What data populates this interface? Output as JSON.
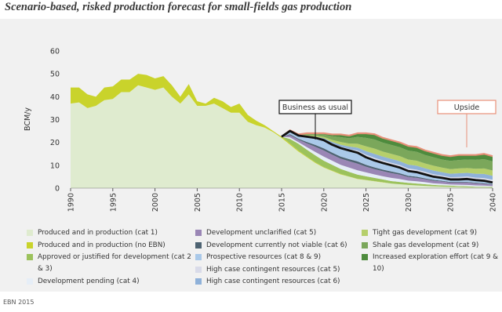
{
  "chart_data": {
    "type": "stacked_area",
    "title": "Scenario-based, risked production forecast for small-fields gas production",
    "y_label": "BCM/y",
    "source": "EBN 2015",
    "annotations": [
      "Business as usual",
      "Upside"
    ],
    "x": [
      1990,
      1991,
      1992,
      1993,
      1994,
      1995,
      1996,
      1997,
      1998,
      1999,
      2000,
      2001,
      2002,
      2003,
      2004,
      2005,
      2006,
      2007,
      2008,
      2009,
      2010,
      2011,
      2012,
      2013,
      2014,
      2015,
      2016,
      2017,
      2018,
      2019,
      2020,
      2021,
      2022,
      2023,
      2024,
      2025,
      2026,
      2027,
      2028,
      2029,
      2030,
      2031,
      2032,
      2033,
      2034,
      2035,
      2036,
      2037,
      2038,
      2039,
      2040
    ],
    "xlim": [
      1990,
      2040
    ],
    "xticks": [
      1990,
      1995,
      2000,
      2005,
      2010,
      2015,
      2020,
      2025,
      2030,
      2035,
      2040
    ],
    "ylim": [
      0,
      60
    ],
    "yticks": [
      0,
      10,
      20,
      30,
      40,
      50,
      60
    ],
    "series": [
      {
        "name": "Produced and in production (cat 1)",
        "color": "#dfebcf",
        "values": [
          37,
          37.5,
          35,
          36,
          38.5,
          39,
          42,
          42,
          45,
          44,
          43,
          44,
          40,
          37,
          41,
          36,
          36,
          37,
          35,
          33,
          33,
          29,
          27.5,
          26.5,
          24.5,
          22,
          19,
          16,
          13.5,
          11,
          9,
          7.5,
          6,
          5,
          4,
          3.5,
          3,
          2.5,
          2,
          1.7,
          1.4,
          1.2,
          1,
          0.8,
          0.7,
          0.6,
          0.5,
          0.4,
          0.3,
          0.3,
          0.2
        ]
      },
      {
        "name": "Produced and in production (no EBN)",
        "color": "#c9d32b",
        "values": [
          7,
          6.5,
          6,
          4,
          5.5,
          5.5,
          5.5,
          5.5,
          5,
          5.5,
          5,
          5,
          5,
          3,
          4.5,
          2,
          1,
          2.5,
          3,
          2.5,
          4,
          3,
          2,
          1,
          0.5,
          0.5,
          0.5,
          0.4,
          0.3,
          0.3,
          0.2,
          0.2,
          0.2,
          0.1,
          0.1,
          0.1,
          0.1,
          0.1,
          0,
          0,
          0,
          0,
          0,
          0,
          0,
          0,
          0,
          0,
          0,
          0,
          0
        ]
      },
      {
        "name": "Approved or justified for development (cat 2 & 3)",
        "color": "#9cc25c",
        "values": [
          null,
          null,
          null,
          null,
          null,
          null,
          null,
          null,
          null,
          null,
          null,
          null,
          null,
          null,
          null,
          null,
          null,
          null,
          null,
          null,
          null,
          null,
          null,
          null,
          null,
          0,
          2,
          3,
          3,
          3,
          2.8,
          2.5,
          2.2,
          2,
          1.8,
          1.6,
          1.4,
          1.2,
          1.1,
          1,
          0.9,
          0.8,
          0.7,
          0.6,
          0.5,
          0.5,
          0.4,
          0.4,
          0.3,
          0.3,
          0.3
        ]
      },
      {
        "name": "Development pending (cat 4)",
        "color": "#e6eef7",
        "values": [
          null,
          null,
          null,
          null,
          null,
          null,
          null,
          null,
          null,
          null,
          null,
          null,
          null,
          null,
          null,
          null,
          null,
          null,
          null,
          null,
          null,
          null,
          null,
          null,
          null,
          0,
          0.7,
          0.7,
          1.1,
          1.5,
          1.8,
          1.8,
          1.8,
          1.9,
          1.9,
          1.7,
          1.5,
          1.4,
          1.4,
          1.3,
          1,
          1,
          0.9,
          0.7,
          0.7,
          0.5,
          0.6,
          0.6,
          0.6,
          0.5,
          0.4
        ]
      },
      {
        "name": "Development unclarified (cat 5)",
        "color": "#9a86b5",
        "values": [
          null,
          null,
          null,
          null,
          null,
          null,
          null,
          null,
          null,
          null,
          null,
          null,
          null,
          null,
          null,
          null,
          null,
          null,
          null,
          null,
          null,
          null,
          null,
          null,
          null,
          0,
          1,
          1.1,
          1.7,
          2.3,
          2.7,
          2.6,
          2.7,
          2.8,
          2.9,
          2.5,
          2.3,
          2.2,
          2.1,
          1.9,
          1.6,
          1.5,
          1.3,
          1.1,
          1,
          0.8,
          0.9,
          1,
          0.9,
          0.8,
          0.6
        ]
      },
      {
        "name": "Development currently not viable (cat 6)",
        "color": "#4e6372",
        "values": [
          null,
          null,
          null,
          null,
          null,
          null,
          null,
          null,
          null,
          null,
          null,
          null,
          null,
          null,
          null,
          null,
          null,
          null,
          null,
          null,
          null,
          null,
          null,
          null,
          null,
          0,
          0.4,
          0.4,
          0.6,
          0.8,
          0.9,
          0.9,
          0.9,
          0.9,
          1,
          0.8,
          0.8,
          0.7,
          0.7,
          0.6,
          0.5,
          0.5,
          0.4,
          0.4,
          0.3,
          0.3,
          0.3,
          0.3,
          0.3,
          0.3,
          0.2
        ]
      },
      {
        "name": "Prospective resources (cat 8 & 9)",
        "color": "#aac9e9",
        "values": [
          null,
          null,
          null,
          null,
          null,
          null,
          null,
          null,
          null,
          null,
          null,
          null,
          null,
          null,
          null,
          null,
          null,
          null,
          null,
          null,
          null,
          null,
          null,
          null,
          null,
          0,
          1.4,
          1.4,
          2.3,
          3.1,
          3.6,
          3.5,
          3.7,
          3.8,
          3.8,
          3.3,
          3,
          2.9,
          2.7,
          2.5,
          2.1,
          2,
          1.7,
          1.4,
          1.3,
          1.1,
          1.1,
          1.3,
          1.1,
          1,
          0.8
        ]
      },
      {
        "name": "High case contingent resources (cat 5)",
        "color": "#d9dbe9",
        "values": [
          null,
          null,
          null,
          null,
          null,
          null,
          null,
          null,
          null,
          null,
          null,
          null,
          null,
          null,
          null,
          null,
          null,
          null,
          null,
          null,
          null,
          null,
          null,
          null,
          null,
          0,
          0,
          0.1,
          0.2,
          0.2,
          0.3,
          0.5,
          0.6,
          0.7,
          0.9,
          1.1,
          1.2,
          1.1,
          1.1,
          1.1,
          1.1,
          1.1,
          1.1,
          1.1,
          1,
          1,
          1.1,
          1.1,
          1.1,
          1.2,
          1.2
        ]
      },
      {
        "name": "High case contingent resources (cat 6)",
        "color": "#8fb1d9",
        "values": [
          null,
          null,
          null,
          null,
          null,
          null,
          null,
          null,
          null,
          null,
          null,
          null,
          null,
          null,
          null,
          null,
          null,
          null,
          null,
          null,
          null,
          null,
          null,
          null,
          null,
          0,
          0.1,
          0.1,
          0.2,
          0.3,
          0.5,
          0.7,
          0.9,
          1,
          1.3,
          1.6,
          1.7,
          1.7,
          1.7,
          1.7,
          1.7,
          1.7,
          1.6,
          1.6,
          1.5,
          1.5,
          1.6,
          1.6,
          1.7,
          1.8,
          1.7
        ]
      },
      {
        "name": "Tight gas development (cat 9)",
        "color": "#b6cf6b",
        "values": [
          null,
          null,
          null,
          null,
          null,
          null,
          null,
          null,
          null,
          null,
          null,
          null,
          null,
          null,
          null,
          null,
          null,
          null,
          null,
          null,
          null,
          null,
          null,
          null,
          null,
          0,
          0.1,
          0.1,
          0.3,
          0.4,
          0.6,
          0.9,
          1.2,
          1.3,
          1.7,
          2.1,
          2.3,
          2.2,
          2.2,
          2.2,
          2.2,
          2.2,
          2.1,
          2.1,
          2,
          2,
          2.1,
          2.1,
          2.2,
          2.4,
          2.3
        ]
      },
      {
        "name": "Shale gas development (cat 9)",
        "color": "#7ba75b",
        "values": [
          null,
          null,
          null,
          null,
          null,
          null,
          null,
          null,
          null,
          null,
          null,
          null,
          null,
          null,
          null,
          null,
          null,
          null,
          null,
          null,
          null,
          null,
          null,
          null,
          null,
          0,
          0.1,
          0.2,
          0.5,
          0.7,
          1,
          1.6,
          2.1,
          2.3,
          3,
          3.7,
          4,
          3.9,
          3.9,
          3.9,
          3.9,
          3.9,
          3.7,
          3.7,
          3.5,
          3.6,
          3.7,
          3.7,
          3.9,
          4.1,
          4
        ]
      },
      {
        "name": "Increased exploration effort (cat 9 & 10)",
        "color": "#4e8b3d",
        "values": [
          null,
          null,
          null,
          null,
          null,
          null,
          null,
          null,
          null,
          null,
          null,
          null,
          null,
          null,
          null,
          null,
          null,
          null,
          null,
          null,
          null,
          null,
          null,
          null,
          null,
          0,
          0,
          0,
          0.3,
          0.4,
          0.6,
          0.8,
          1.2,
          1.2,
          1.6,
          2,
          2.3,
          2.1,
          2.1,
          2.1,
          2.1,
          2.1,
          2,
          2,
          2,
          2.1,
          2.2,
          2,
          2.1,
          2.3,
          2.3
        ]
      }
    ],
    "bau_series_count": 7
  }
}
